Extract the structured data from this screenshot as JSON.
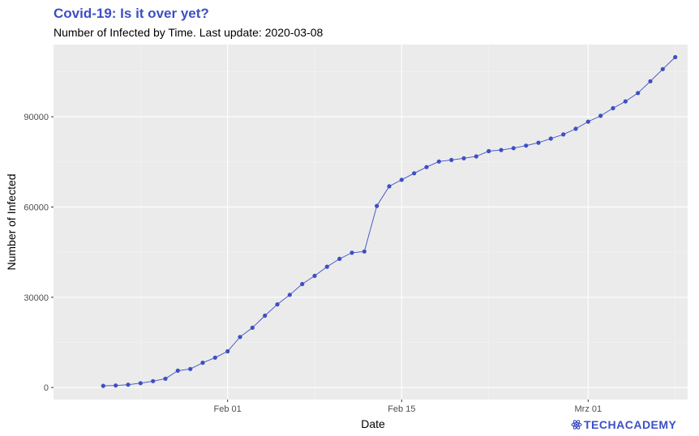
{
  "header": {
    "title": "Covid-19: Is it over yet?",
    "subtitle": "Number of Infected by Time. Last update: 2020-03-08"
  },
  "brand": {
    "name": "TECHACADEMY",
    "color": "#3d4fc4"
  },
  "colors": {
    "title": "#3d4fc4",
    "series": "#3d4fc4",
    "panel_background": "#ebebeb",
    "grid_major": "#ffffff",
    "grid_minor": "#f4f4f4"
  },
  "chart_data": {
    "type": "line",
    "title": "Covid-19: Is it over yet?",
    "subtitle": "Number of Infected by Time. Last update: 2020-03-08",
    "xlabel": "Date",
    "ylabel": "Number of Infected",
    "x_type": "date",
    "xlim": [
      "2020-01-18",
      "2020-03-09"
    ],
    "ylim": [
      -4000,
      114000
    ],
    "x_ticks": [
      {
        "date": "2020-02-01",
        "label": "Feb 01"
      },
      {
        "date": "2020-02-15",
        "label": "Feb 15"
      },
      {
        "date": "2020-03-01",
        "label": "Mrz 01"
      }
    ],
    "y_ticks": [
      {
        "value": 0,
        "label": "0"
      },
      {
        "value": 30000,
        "label": "30000"
      },
      {
        "value": 60000,
        "label": "60000"
      },
      {
        "value": 90000,
        "label": "90000"
      }
    ],
    "grid": true,
    "markers": true,
    "x": [
      "2020-01-22",
      "2020-01-23",
      "2020-01-24",
      "2020-01-25",
      "2020-01-26",
      "2020-01-27",
      "2020-01-28",
      "2020-01-29",
      "2020-01-30",
      "2020-01-31",
      "2020-02-01",
      "2020-02-02",
      "2020-02-03",
      "2020-02-04",
      "2020-02-05",
      "2020-02-06",
      "2020-02-07",
      "2020-02-08",
      "2020-02-09",
      "2020-02-10",
      "2020-02-11",
      "2020-02-12",
      "2020-02-13",
      "2020-02-14",
      "2020-02-15",
      "2020-02-16",
      "2020-02-17",
      "2020-02-18",
      "2020-02-19",
      "2020-02-20",
      "2020-02-21",
      "2020-02-22",
      "2020-02-23",
      "2020-02-24",
      "2020-02-25",
      "2020-02-26",
      "2020-02-27",
      "2020-02-28",
      "2020-02-29",
      "2020-03-01",
      "2020-03-02",
      "2020-03-03",
      "2020-03-04",
      "2020-03-05",
      "2020-03-06",
      "2020-03-07",
      "2020-03-08"
    ],
    "series": [
      {
        "values": [
          555,
          654,
          941,
          1434,
          2118,
          2927,
          5578,
          6166,
          8234,
          9927,
          12038,
          16787,
          19881,
          23892,
          27635,
          30817,
          34391,
          37120,
          40150,
          42762,
          44802,
          45221,
          60368,
          66885,
          69030,
          71224,
          73258,
          75136,
          75639,
          76197,
          76819,
          78572,
          78958,
          79561,
          80406,
          81388,
          82746,
          84112,
          86011,
          88369,
          90306,
          92840,
          95120,
          97886,
          101801,
          105847,
          109821
        ]
      }
    ]
  }
}
